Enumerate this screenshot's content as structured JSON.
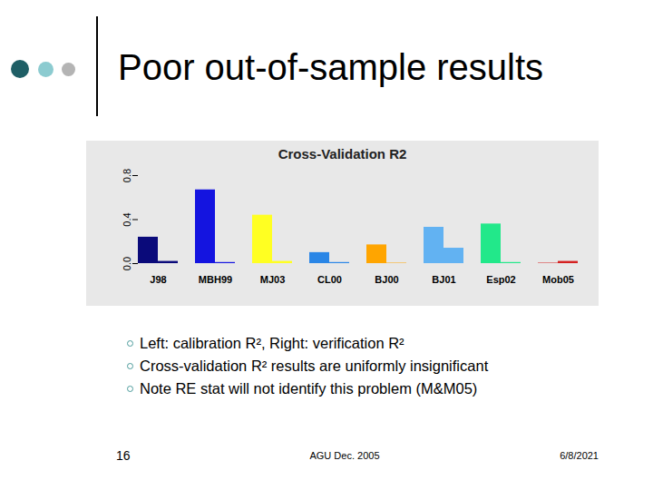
{
  "slide": {
    "title": "Poor out-of-sample results",
    "bullets": [
      "Left: calibration R², Right: verification R²",
      "Cross-validation R² results are uniformly insignificant",
      "Note RE stat will not identify this problem (M&M05)"
    ],
    "footer": {
      "page": "16",
      "center": "AGU Dec. 2005",
      "date": "6/8/2021"
    }
  },
  "chart_data": {
    "type": "bar",
    "title": "Cross-Validation R2",
    "categories": [
      "J98",
      "MBH99",
      "MJ03",
      "CL00",
      "BJ00",
      "BJ01",
      "Esp02",
      "Mob05"
    ],
    "colors": [
      "#0a0a7a",
      "#1414e0",
      "#ffff22",
      "#2a86e6",
      "#ffa500",
      "#62b2f2",
      "#22e88a",
      "#d42020"
    ],
    "series": [
      {
        "name": "calibration R²",
        "values": [
          0.24,
          0.67,
          0.44,
          0.1,
          0.17,
          0.33,
          0.36,
          0.004
        ]
      },
      {
        "name": "verification R²",
        "values": [
          0.02,
          0.01,
          0.02,
          0.01,
          0.004,
          0.14,
          0.01,
          0.02
        ]
      }
    ],
    "ylim": [
      0,
      0.8
    ],
    "yticks": [
      {
        "value": 0,
        "label": "0.0"
      },
      {
        "value": 0.4,
        "label": "0.4"
      },
      {
        "value": 0.8,
        "label": "0.8"
      }
    ],
    "grid": false
  }
}
